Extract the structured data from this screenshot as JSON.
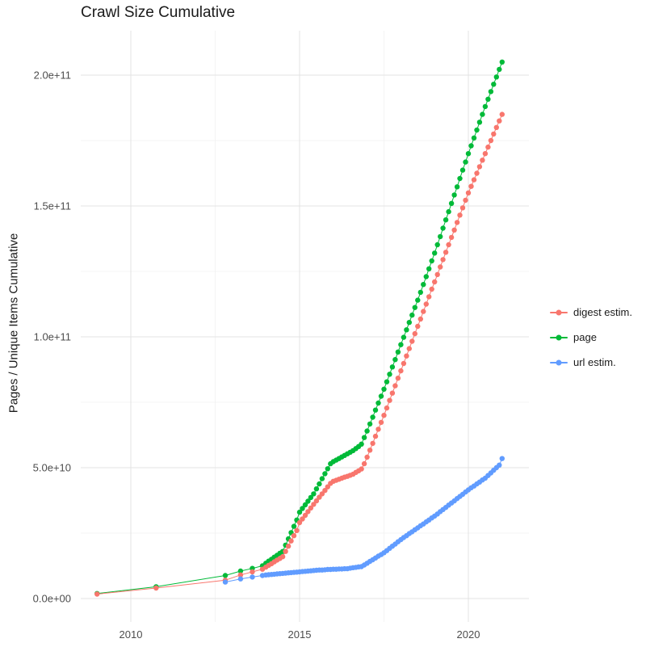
{
  "title": "Crawl Size Cumulative",
  "axes": {
    "y_label": "Pages / Unique Items Cumulative",
    "x_ticks": [
      {
        "value": 2010,
        "label": "2010"
      },
      {
        "value": 2015,
        "label": "2015"
      },
      {
        "value": 2020,
        "label": "2020"
      }
    ],
    "y_ticks": [
      {
        "value": 0,
        "label": "0.0e+00"
      },
      {
        "value": 50,
        "label": "5.0e+10"
      },
      {
        "value": 100,
        "label": "1.0e+11"
      },
      {
        "value": 150,
        "label": "1.5e+11"
      },
      {
        "value": 200,
        "label": "2.0e+11"
      }
    ],
    "x_minor": [
      2012.5,
      2017.5
    ],
    "y_minor": [
      25,
      75,
      125,
      175
    ]
  },
  "legend": {
    "items": [
      {
        "label": "digest estim.",
        "color": "#F8766D"
      },
      {
        "label": "page",
        "color": "#00BA38"
      },
      {
        "label": "url estim.",
        "color": "#619CFF"
      }
    ]
  },
  "colors": {
    "grid_major": "#E3E3E3",
    "grid_minor": "#F2F2F2",
    "tick_text": "#4D4D4D",
    "title_text": "#1A1A1A"
  },
  "chart_data": {
    "type": "scatter",
    "title": "Crawl Size Cumulative",
    "xlabel": "",
    "ylabel": "Pages / Unique Items Cumulative",
    "legend_position": "right",
    "grid": true,
    "markers_with_lines": true,
    "value_unit": 1000000000,
    "x_range": [
      2008.5,
      2021.8
    ],
    "y_range_e9": [
      0,
      210
    ],
    "x": [
      2009,
      2010.75,
      2012.8,
      2013.25,
      2013.6,
      2013.9,
      2014,
      2014.083,
      2014.167,
      2014.25,
      2014.333,
      2014.417,
      2014.5,
      2014.583,
      2014.667,
      2014.75,
      2014.833,
      2014.917,
      2015,
      2015.083,
      2015.167,
      2015.25,
      2015.333,
      2015.417,
      2015.5,
      2015.583,
      2015.667,
      2015.75,
      2015.833,
      2015.917,
      2016,
      2016.083,
      2016.167,
      2016.25,
      2016.333,
      2016.417,
      2016.5,
      2016.583,
      2016.667,
      2016.75,
      2016.833,
      2016.917,
      2017,
      2017.083,
      2017.167,
      2017.25,
      2017.333,
      2017.417,
      2017.5,
      2017.583,
      2017.667,
      2017.75,
      2017.833,
      2017.917,
      2018,
      2018.083,
      2018.167,
      2018.25,
      2018.333,
      2018.417,
      2018.5,
      2018.583,
      2018.667,
      2018.75,
      2018.833,
      2018.917,
      2019,
      2019.083,
      2019.167,
      2019.25,
      2019.333,
      2019.417,
      2019.5,
      2019.583,
      2019.667,
      2019.75,
      2019.833,
      2019.917,
      2020,
      2020.083,
      2020.167,
      2020.25,
      2020.333,
      2020.417,
      2020.5,
      2020.583,
      2020.667,
      2020.75,
      2020.833,
      2020.917,
      2021
    ],
    "series": [
      {
        "name": "digest estim.",
        "color": "#F8766D",
        "values_e9": [
          1.7,
          4,
          7,
          9,
          10.2,
          11.2,
          12,
          12.7,
          13.3,
          14,
          14.7,
          15.3,
          16,
          18,
          20,
          22,
          24,
          26,
          29,
          30.4,
          31.8,
          33.2,
          34.6,
          36,
          37.3,
          38.7,
          40,
          41.3,
          42.7,
          44,
          44.8,
          45.2,
          45.6,
          46,
          46.4,
          46.7,
          47.1,
          47.5,
          48.2,
          48.8,
          49.5,
          51.5,
          54,
          56.7,
          59.3,
          62,
          64.7,
          67.3,
          70,
          72.8,
          75.7,
          78.5,
          81.3,
          84.2,
          87,
          89.8,
          92.7,
          95.5,
          98.3,
          101.2,
          104,
          106.8,
          109.7,
          112.5,
          115.3,
          118.2,
          121,
          123.8,
          126.7,
          129.5,
          132.3,
          135.2,
          138,
          140.8,
          143.7,
          146.5,
          149.3,
          152.2,
          155,
          157.5,
          160,
          162.5,
          165,
          167.5,
          170,
          172.5,
          175,
          177.5,
          180,
          182.5,
          185
        ]
      },
      {
        "name": "page",
        "color": "#00BA38",
        "values_e9": [
          1.9,
          4.5,
          8.8,
          10.5,
          11.5,
          12.5,
          13.5,
          14.3,
          15,
          15.8,
          16.5,
          17.3,
          18,
          20.4,
          22.8,
          25.2,
          27.6,
          30,
          33,
          34.4,
          35.8,
          37.2,
          38.6,
          40,
          41.9,
          43.8,
          45.8,
          47.7,
          49.6,
          51.5,
          52.3,
          52.9,
          53.5,
          54.1,
          54.7,
          55.3,
          55.9,
          56.5,
          57.3,
          58.1,
          59,
          61.5,
          64,
          66.7,
          69.3,
          72,
          74.7,
          77.3,
          80,
          82.8,
          85.7,
          88.5,
          91.3,
          94.2,
          97,
          99.8,
          102.7,
          105.5,
          108.3,
          111.2,
          114,
          117,
          120,
          123,
          126,
          129,
          132,
          135.2,
          138.3,
          141.5,
          144.7,
          147.8,
          151,
          154.2,
          157.3,
          160.5,
          163.7,
          166.8,
          170,
          173,
          176,
          179,
          182,
          185,
          188,
          190.8,
          193.7,
          196.5,
          199.3,
          202.2,
          205
        ]
      },
      {
        "name": "url estim.",
        "color": "#619CFF",
        "values_e9": [
          null,
          null,
          6.3,
          7.5,
          8.2,
          8.8,
          9,
          9.1,
          9.2,
          9.3,
          9.4,
          9.5,
          9.6,
          9.7,
          9.8,
          9.9,
          10,
          10.1,
          10.2,
          10.3,
          10.4,
          10.5,
          10.6,
          10.7,
          10.8,
          10.9,
          10.9,
          11,
          11.1,
          11.1,
          11.2,
          11.2,
          11.3,
          11.3,
          11.4,
          11.4,
          11.6,
          11.8,
          11.9,
          12.1,
          12.2,
          12.8,
          13.5,
          14.2,
          14.8,
          15.5,
          16.2,
          16.8,
          17.5,
          18.3,
          19.2,
          20,
          20.8,
          21.7,
          22.5,
          23.3,
          24,
          24.8,
          25.5,
          26.3,
          27,
          27.8,
          28.5,
          29.3,
          30,
          30.8,
          31.5,
          32.3,
          33.2,
          34,
          34.8,
          35.7,
          36.5,
          37.3,
          38.2,
          39,
          39.8,
          40.7,
          41.5,
          42.3,
          43,
          43.8,
          44.5,
          45.3,
          46,
          47,
          48,
          49,
          50,
          51,
          53.5
        ]
      }
    ]
  }
}
